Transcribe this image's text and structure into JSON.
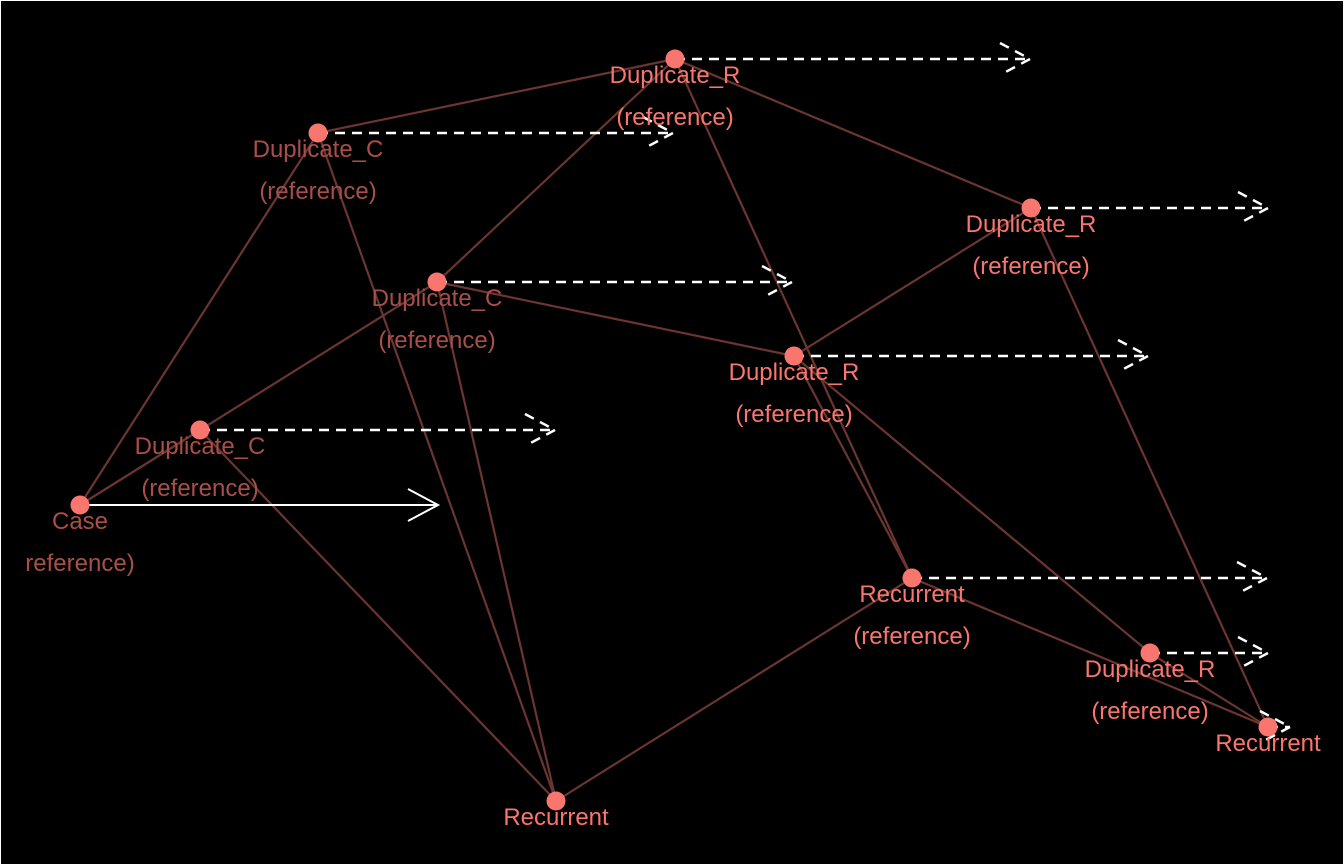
{
  "colors": {
    "background": "#000000",
    "node": "#f8766d",
    "edge": "#6b3530",
    "arrow": "#ffffff",
    "label_bright": "#f8766d",
    "label_dim": "#a84f49"
  },
  "nodes": [
    {
      "id": "case",
      "line1": "Case",
      "line2": "reference)",
      "dim": true
    },
    {
      "id": "dupc1",
      "line1": "Duplicate_C",
      "line2": "(reference)",
      "dim": true
    },
    {
      "id": "dupc2",
      "line1": "Duplicate_C",
      "line2": "(reference)",
      "dim": true
    },
    {
      "id": "dupc3",
      "line1": "Duplicate_C",
      "line2": "(reference)",
      "dim": true
    },
    {
      "id": "dupr1",
      "line1": "Duplicate_R",
      "line2": "(reference)",
      "dim": false
    },
    {
      "id": "dupr2",
      "line1": "Duplicate_R",
      "line2": "(reference)",
      "dim": false
    },
    {
      "id": "dupr3",
      "line1": "Duplicate_R",
      "line2": "(reference)",
      "dim": false
    },
    {
      "id": "dupr4",
      "line1": "Duplicate_R",
      "line2": "(reference)",
      "dim": false
    },
    {
      "id": "rec1",
      "line1": "Recurrent",
      "line2": "(reference)",
      "dim": false
    },
    {
      "id": "rec2",
      "line1": "Recurrent",
      "line2": "",
      "dim": false
    },
    {
      "id": "rec3",
      "line1": "Recurrent",
      "line2": "",
      "dim": false
    }
  ],
  "edges": [
    [
      "case",
      "dupc1"
    ],
    [
      "case",
      "dupc2"
    ],
    [
      "case",
      "dupc3"
    ],
    [
      "dupc1",
      "dupr1"
    ],
    [
      "dupc1",
      "rec2"
    ],
    [
      "dupc2",
      "dupr1"
    ],
    [
      "dupc2",
      "dupr3"
    ],
    [
      "dupc2",
      "rec2"
    ],
    [
      "dupc3",
      "rec2"
    ],
    [
      "dupr1",
      "dupr2"
    ],
    [
      "dupr1",
      "rec1"
    ],
    [
      "dupr3",
      "dupr2"
    ],
    [
      "dupr3",
      "rec1"
    ],
    [
      "dupr3",
      "dupr4"
    ],
    [
      "rec1",
      "rec2"
    ],
    [
      "rec1",
      "rec3"
    ],
    [
      "dupr2",
      "rec3"
    ],
    [
      "dupr4",
      "rec3"
    ]
  ],
  "arrows": [
    {
      "from": "case",
      "style": "solid"
    },
    {
      "from": "dupc1",
      "style": "dashed"
    },
    {
      "from": "dupc2",
      "style": "dashed"
    },
    {
      "from": "dupc3",
      "style": "dashed"
    },
    {
      "from": "dupr1",
      "style": "dashed"
    },
    {
      "from": "dupr2",
      "style": "dashed"
    },
    {
      "from": "dupr3",
      "style": "dashed"
    },
    {
      "from": "dupr4",
      "style": "dashed"
    },
    {
      "from": "rec1",
      "style": "dashed"
    },
    {
      "from": "rec3",
      "style": "dashed"
    }
  ]
}
